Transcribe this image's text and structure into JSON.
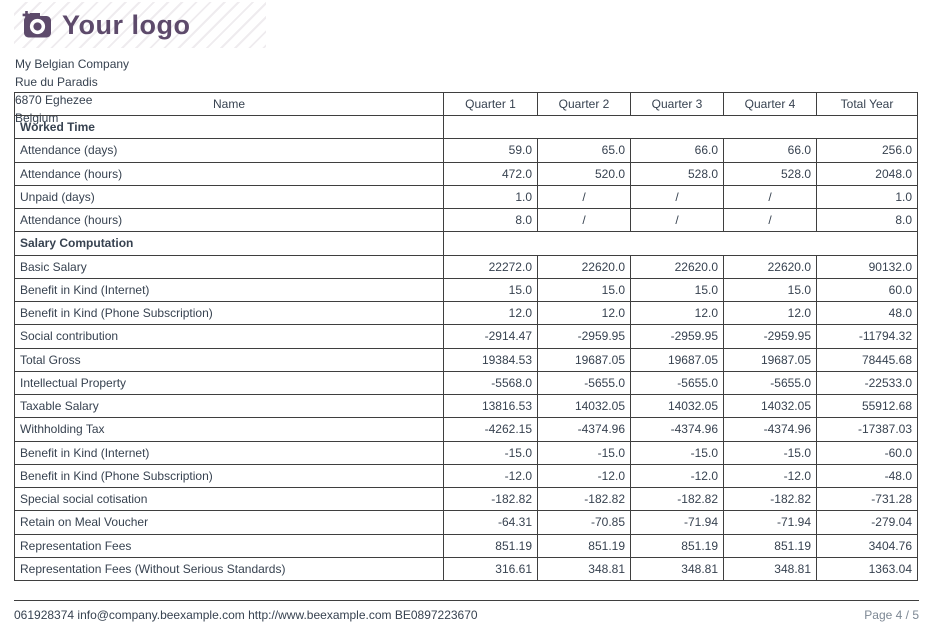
{
  "logo": {
    "text": "Your logo",
    "icon": "camera-icon",
    "color": "#5d4a6b"
  },
  "company": {
    "name": "My Belgian Company",
    "street": "Rue du Paradis",
    "city": "6870 Eghezee",
    "country": "Belgium"
  },
  "table": {
    "columns": [
      "Name",
      "Quarter 1",
      "Quarter 2",
      "Quarter 3",
      "Quarter 4",
      "Total Year"
    ],
    "rows": [
      {
        "type": "section",
        "label": "Worked Time"
      },
      {
        "type": "data",
        "label": "Attendance (days)",
        "values": [
          "59.0",
          "65.0",
          "66.0",
          "66.0",
          "256.0"
        ]
      },
      {
        "type": "data",
        "label": "Attendance (hours)",
        "values": [
          "472.0",
          "520.0",
          "528.0",
          "528.0",
          "2048.0"
        ]
      },
      {
        "type": "data",
        "label": "Unpaid (days)",
        "values": [
          "1.0",
          "/",
          "/",
          "/",
          "1.0"
        ]
      },
      {
        "type": "data",
        "label": "Attendance (hours)",
        "values": [
          "8.0",
          "/",
          "/",
          "/",
          "8.0"
        ]
      },
      {
        "type": "section",
        "label": "Salary Computation"
      },
      {
        "type": "data",
        "label": "Basic Salary",
        "values": [
          "22272.0",
          "22620.0",
          "22620.0",
          "22620.0",
          "90132.0"
        ]
      },
      {
        "type": "data",
        "label": "Benefit in Kind (Internet)",
        "values": [
          "15.0",
          "15.0",
          "15.0",
          "15.0",
          "60.0"
        ]
      },
      {
        "type": "data",
        "label": "Benefit in Kind (Phone Subscription)",
        "values": [
          "12.0",
          "12.0",
          "12.0",
          "12.0",
          "48.0"
        ]
      },
      {
        "type": "data",
        "label": "Social contribution",
        "values": [
          "-2914.47",
          "-2959.95",
          "-2959.95",
          "-2959.95",
          "-11794.32"
        ]
      },
      {
        "type": "data",
        "label": "Total Gross",
        "values": [
          "19384.53",
          "19687.05",
          "19687.05",
          "19687.05",
          "78445.68"
        ]
      },
      {
        "type": "data",
        "label": "Intellectual Property",
        "values": [
          "-5568.0",
          "-5655.0",
          "-5655.0",
          "-5655.0",
          "-22533.0"
        ]
      },
      {
        "type": "data",
        "label": "Taxable Salary",
        "values": [
          "13816.53",
          "14032.05",
          "14032.05",
          "14032.05",
          "55912.68"
        ]
      },
      {
        "type": "data",
        "label": "Withholding Tax",
        "values": [
          "-4262.15",
          "-4374.96",
          "-4374.96",
          "-4374.96",
          "-17387.03"
        ]
      },
      {
        "type": "data",
        "label": "Benefit in Kind (Internet)",
        "values": [
          "-15.0",
          "-15.0",
          "-15.0",
          "-15.0",
          "-60.0"
        ]
      },
      {
        "type": "data",
        "label": "Benefit in Kind (Phone Subscription)",
        "values": [
          "-12.0",
          "-12.0",
          "-12.0",
          "-12.0",
          "-48.0"
        ]
      },
      {
        "type": "data",
        "label": "Special social cotisation",
        "values": [
          "-182.82",
          "-182.82",
          "-182.82",
          "-182.82",
          "-731.28"
        ]
      },
      {
        "type": "data",
        "label": "Retain on Meal Voucher",
        "values": [
          "-64.31",
          "-70.85",
          "-71.94",
          "-71.94",
          "-279.04"
        ]
      },
      {
        "type": "data",
        "label": "Representation Fees",
        "values": [
          "851.19",
          "851.19",
          "851.19",
          "851.19",
          "3404.76"
        ]
      },
      {
        "type": "data",
        "label": "Representation Fees (Without Serious Standards)",
        "values": [
          "316.61",
          "348.81",
          "348.81",
          "348.81",
          "1363.04"
        ]
      }
    ]
  },
  "footer": {
    "left": "061928374 info@company.beexample.com http://www.beexample.com BE0897223670",
    "page": "Page 4 / 5"
  },
  "colors": {
    "brand": "#5d4a6b",
    "text": "#374250",
    "muted": "#7d8894",
    "border": "#3f3f3f"
  }
}
